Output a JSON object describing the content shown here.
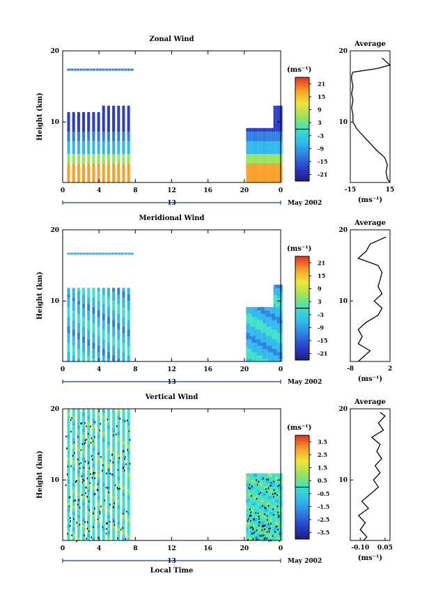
{
  "figure": {
    "xlabel": "Local Time",
    "date_label": "May 2002",
    "day_label": "13"
  },
  "chart_data": [
    {
      "type": "heatmap",
      "title": "Zonal Wind",
      "ylabel": "Height (km)",
      "xlabel": "Local Time",
      "x_ticks": [
        "0",
        "4",
        "8",
        "12",
        "16",
        "20",
        "0"
      ],
      "x_range_hours": [
        0,
        24
      ],
      "y_ticks": [
        "10",
        "20"
      ],
      "ylim_km": [
        1.5,
        20
      ],
      "colorbar": {
        "unit_label": "(ms⁻¹)",
        "tick_labels": [
          "21",
          "15",
          "9",
          "3",
          "-3",
          "-9",
          "-15",
          "-21"
        ],
        "range": [
          -24,
          24
        ],
        "zero_contour": 0
      },
      "profile": {
        "title": "Average",
        "xlabel": "(ms⁻¹)",
        "x_ticks": [
          "-15",
          "15"
        ],
        "xlim": [
          -15,
          15
        ],
        "y_ticks": [
          "10",
          "20"
        ],
        "height_km": [
          1.5,
          2,
          3,
          4,
          5,
          6,
          7,
          8,
          9,
          10,
          11,
          12,
          13,
          14,
          15,
          16,
          16.5,
          17,
          17.5,
          18,
          19
        ],
        "value_ms": [
          15,
          13,
          12,
          13,
          11,
          5,
          0,
          -5,
          -10,
          -13,
          -13,
          -14,
          -13,
          -14,
          -13,
          -14,
          -14,
          -13,
          5,
          15,
          9
        ]
      }
    },
    {
      "type": "heatmap",
      "title": "Meridional Wind",
      "ylabel": "Height (km)",
      "xlabel": "Local Time",
      "x_ticks": [
        "0",
        "4",
        "8",
        "12",
        "16",
        "20",
        "0"
      ],
      "x_range_hours": [
        0,
        24
      ],
      "y_ticks": [
        "10",
        "20"
      ],
      "ylim_km": [
        1.5,
        20
      ],
      "colorbar": {
        "unit_label": "(ms⁻¹)",
        "tick_labels": [
          "21",
          "15",
          "9",
          "3",
          "-3",
          "-9",
          "-15",
          "-21"
        ],
        "range": [
          -24,
          24
        ],
        "zero_contour": 0
      },
      "profile": {
        "title": "Average",
        "xlabel": "(ms⁻¹)",
        "x_ticks": [
          "-8",
          "2"
        ],
        "xlim": [
          -8,
          2
        ],
        "y_ticks": [
          "10",
          "20"
        ],
        "height_km": [
          1.5,
          2,
          3,
          4,
          5,
          6,
          7,
          8,
          9,
          10,
          11,
          12,
          13,
          14,
          15,
          16,
          17,
          18,
          19
        ],
        "value_ms": [
          -6,
          -5,
          -3,
          -6,
          -5,
          -6,
          -4,
          -1,
          0,
          -2,
          0,
          -1,
          -0.5,
          0,
          -1,
          -6,
          -4,
          -3,
          1
        ]
      }
    },
    {
      "type": "heatmap",
      "title": "Vertical Wind",
      "ylabel": "Height (km)",
      "xlabel": "Local Time",
      "x_ticks": [
        "0",
        "4",
        "8",
        "12",
        "16",
        "20",
        "0"
      ],
      "x_range_hours": [
        0,
        24
      ],
      "y_ticks": [
        "10",
        "20"
      ],
      "ylim_km": [
        1.5,
        20
      ],
      "colorbar": {
        "unit_label": "(ms⁻¹)",
        "tick_labels": [
          "3.5",
          "2.5",
          "1.5",
          "0.5",
          "-0.5",
          "-1.5",
          "-2.5",
          "-3.5"
        ],
        "range": [
          -4,
          4
        ],
        "zero_contour": 0
      },
      "profile": {
        "title": "Average",
        "xlabel": "(ms⁻¹)",
        "x_ticks": [
          "-0.10",
          "0.05"
        ],
        "xlim": [
          -0.16,
          0.08
        ],
        "y_ticks": [
          "10",
          "20"
        ],
        "height_km": [
          1.5,
          2,
          3,
          4,
          5,
          6,
          7,
          8,
          9,
          10,
          11,
          12,
          13,
          14,
          15,
          16,
          17,
          18,
          19,
          19.5
        ],
        "value_ms": [
          -0.08,
          -0.06,
          -0.1,
          -0.07,
          -0.11,
          -0.05,
          -0.09,
          -0.04,
          0.01,
          -0.02,
          0.02,
          -0.01,
          0.03,
          0.0,
          0.02,
          -0.03,
          0.04,
          0.01,
          0.05,
          0.02
        ]
      }
    }
  ]
}
